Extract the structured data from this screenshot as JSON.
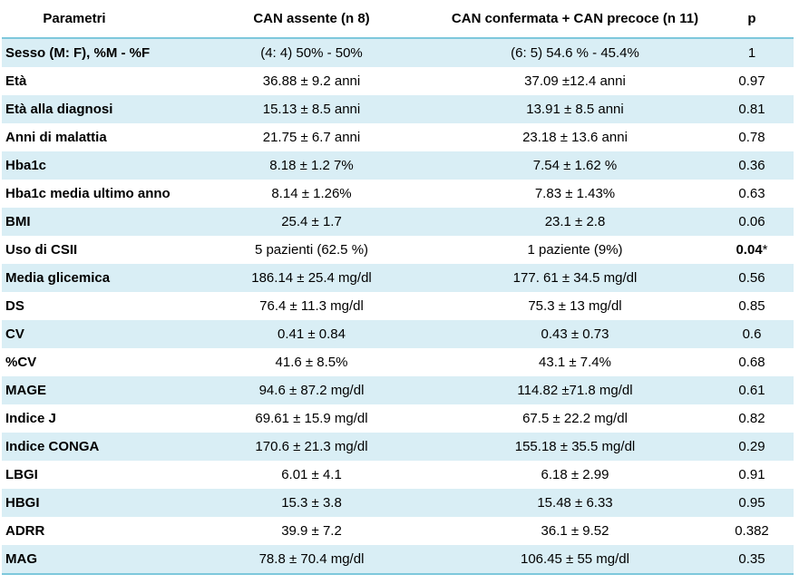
{
  "table": {
    "headers": [
      "Parametri",
      "CAN assente (n 8)",
      "CAN confermata + CAN precoce (n 11)",
      "p"
    ],
    "rows": [
      {
        "param": "Sesso (M: F), %M - %F",
        "a": "(4: 4) 50% - 50%",
        "b": "(6: 5) 54.6 % - 45.4%",
        "p": "1",
        "p_bold": false
      },
      {
        "param": "Età",
        "a": "36.88 ± 9.2 anni",
        "b": "37.09 ±12.4 anni",
        "p": "0.97",
        "p_bold": false
      },
      {
        "param": "Età alla diagnosi",
        "a": "15.13 ± 8.5 anni",
        "b": "13.91 ± 8.5 anni",
        "p": "0.81",
        "p_bold": false
      },
      {
        "param": "Anni di malattia",
        "a": "21.75 ± 6.7 anni",
        "b": "23.18 ± 13.6 anni",
        "p": "0.78",
        "p_bold": false
      },
      {
        "param": "Hba1c",
        "a": "8.18 ± 1.2 7%",
        "b": "7.54 ± 1.62 %",
        "p": "0.36",
        "p_bold": false
      },
      {
        "param": "Hba1c media ultimo anno",
        "a": "8.14 ± 1.26%",
        "b": "7.83 ± 1.43%",
        "p": "0.63",
        "p_bold": false
      },
      {
        "param": "BMI",
        "a": "25.4 ± 1.7",
        "b": "23.1 ± 2.8",
        "p": "0.06",
        "p_bold": false
      },
      {
        "param": "Uso di CSII",
        "a": "5 pazienti (62.5 %)",
        "b": "1 paziente (9%)",
        "p": "0.04",
        "p_bold": true,
        "p_suffix": "*"
      },
      {
        "param": "Media glicemica",
        "a": "186.14 ± 25.4 mg/dl",
        "b": "177. 61 ± 34.5 mg/dl",
        "p": "0.56",
        "p_bold": false
      },
      {
        "param": " DS",
        "a": "76.4 ± 11.3 mg/dl",
        "b": "75.3 ± 13 mg/dl",
        "p": "0.85",
        "p_bold": false
      },
      {
        "param": "CV",
        "a": "0.41 ± 0.84",
        "b": "0.43 ± 0.73",
        "p": "0.6",
        "p_bold": false
      },
      {
        "param": "%CV",
        "a": "41.6 ± 8.5%",
        "b": "43.1 ± 7.4%",
        "p": "0.68",
        "p_bold": false
      },
      {
        "param": "MAGE",
        "a": "94.6 ± 87.2 mg/dl",
        "b": "114.82 ±71.8 mg/dl",
        "p": "0.61",
        "p_bold": false
      },
      {
        "param": "Indice J",
        "a": "69.61 ± 15.9 mg/dl",
        "b": "67.5 ± 22.2 mg/dl",
        "p": "0.82",
        "p_bold": false
      },
      {
        "param": "Indice CONGA",
        "a": "170.6 ± 21.3 mg/dl",
        "b": "155.18 ± 35.5 mg/dl",
        "p": "0.29",
        "p_bold": false
      },
      {
        "param": "LBGI",
        "a": "6.01 ± 4.1",
        "b": "6.18 ± 2.99",
        "p": "0.91",
        "p_bold": false
      },
      {
        "param": "HBGI",
        "a": "15.3 ± 3.8",
        "b": "15.48 ± 6.33",
        "p": "0.95",
        "p_bold": false
      },
      {
        "param": "ADRR",
        "a": "39.9 ± 7.2",
        "b": "36.1 ± 9.52",
        "p": "0.382",
        "p_bold": false
      },
      {
        "param": "MAG",
        "a": "78.8 ± 70.4 mg/dl",
        "b": "106.45 ± 55 mg/dl",
        "p": "0.35",
        "p_bold": false
      }
    ]
  }
}
